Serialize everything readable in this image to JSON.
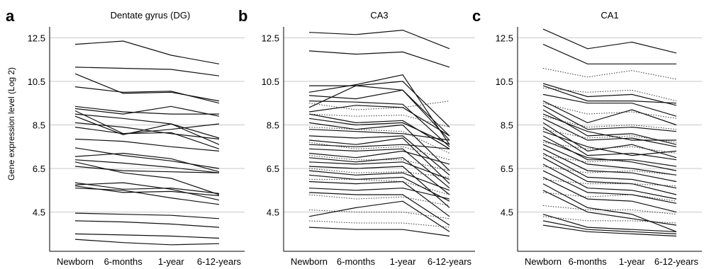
{
  "chart_data": {
    "ylabel": "Gene expression level (Log 2)",
    "categories": [
      "Newborn",
      "6-months",
      "1-year",
      "6-12-years"
    ],
    "yticks": [
      "12.5",
      "10.5",
      "8.5",
      "6.5",
      "4.5"
    ],
    "ylim": [
      2.7,
      13.0
    ],
    "grid": true,
    "panels": [
      {
        "letter": "a",
        "title": "Dentate gyrus (DG)",
        "type": "line",
        "series": [
          {
            "values": [
              12.2,
              12.35,
              11.7,
              11.3
            ]
          },
          {
            "values": [
              11.15,
              11.1,
              11.05,
              10.75
            ]
          },
          {
            "values": [
              10.85,
              9.95,
              10.0,
              9.6
            ]
          },
          {
            "values": [
              10.25,
              10.0,
              10.05,
              9.5
            ]
          },
          {
            "values": [
              9.35,
              9.1,
              9.0,
              9.0
            ]
          },
          {
            "values": [
              9.25,
              9.0,
              9.35,
              8.9
            ]
          },
          {
            "values": [
              9.15,
              8.1,
              8.3,
              8.55
            ]
          },
          {
            "values": [
              9.0,
              8.8,
              8.55,
              7.9
            ]
          },
          {
            "values": [
              8.9,
              8.05,
              8.55,
              7.6
            ]
          },
          {
            "values": [
              8.6,
              8.4,
              8.1,
              7.85
            ]
          },
          {
            "values": [
              8.4,
              8.1,
              8.15,
              7.4
            ]
          },
          {
            "values": [
              7.85,
              7.75,
              7.5,
              7.3
            ]
          },
          {
            "values": [
              7.45,
              7.1,
              6.85,
              6.5
            ]
          },
          {
            "values": [
              7.05,
              7.2,
              6.95,
              6.35
            ]
          },
          {
            "values": [
              6.9,
              6.75,
              6.55,
              6.3
            ]
          },
          {
            "values": [
              6.8,
              6.3,
              6.05,
              5.3
            ]
          },
          {
            "values": [
              6.6,
              6.4,
              6.35,
              6.3
            ]
          },
          {
            "values": [
              5.85,
              5.55,
              5.6,
              5.35
            ]
          },
          {
            "values": [
              5.75,
              5.85,
              5.55,
              5.05
            ]
          },
          {
            "values": [
              5.7,
              5.4,
              5.45,
              5.25
            ]
          },
          {
            "values": [
              5.6,
              5.5,
              5.15,
              4.85
            ]
          },
          {
            "values": [
              4.45,
              4.4,
              4.35,
              4.2
            ]
          },
          {
            "values": [
              4.1,
              4.05,
              3.95,
              3.8
            ]
          },
          {
            "values": [
              3.5,
              3.45,
              3.4,
              3.3
            ]
          },
          {
            "values": [
              3.25,
              3.1,
              3.0,
              3.05
            ]
          }
        ]
      },
      {
        "letter": "b",
        "title": "CA3",
        "type": "line",
        "series": [
          {
            "values": [
              12.75,
              12.65,
              12.85,
              12.0
            ]
          },
          {
            "values": [
              11.9,
              11.75,
              11.85,
              11.15
            ]
          },
          {
            "values": [
              10.3,
              10.3,
              10.5,
              8.4
            ]
          },
          {
            "values": [
              10.0,
              10.35,
              10.8,
              7.6
            ]
          },
          {
            "values": [
              9.85,
              9.7,
              10.1,
              8.0
            ]
          },
          {
            "values": [
              9.6,
              9.55,
              9.45,
              7.5
            ]
          },
          {
            "values": [
              9.3,
              10.3,
              10.1,
              7.8
            ]
          },
          {
            "values": [
              9.1,
              9.4,
              9.3,
              8.0
            ]
          },
          {
            "values": [
              9.0,
              8.6,
              8.7,
              7.4
            ]
          },
          {
            "values": [
              8.8,
              8.5,
              8.6,
              7.6
            ]
          },
          {
            "values": [
              8.6,
              8.3,
              8.5,
              6.4
            ]
          },
          {
            "values": [
              8.3,
              8.2,
              8.1,
              7.8
            ]
          },
          {
            "values": [
              8.0,
              7.9,
              8.0,
              6.2
            ]
          },
          {
            "values": [
              7.8,
              7.6,
              7.9,
              5.8
            ]
          },
          {
            "values": [
              7.6,
              7.5,
              7.6,
              7.4
            ]
          },
          {
            "values": [
              7.4,
              7.3,
              7.4,
              5.6
            ]
          },
          {
            "values": [
              7.2,
              7.0,
              7.3,
              6.7
            ]
          },
          {
            "values": [
              7.0,
              6.8,
              7.0,
              5.3
            ]
          },
          {
            "values": [
              6.8,
              6.7,
              6.8,
              6.0
            ]
          },
          {
            "values": [
              6.6,
              6.5,
              6.6,
              4.7
            ]
          },
          {
            "values": [
              6.4,
              6.2,
              6.3,
              5.5
            ]
          },
          {
            "values": [
              6.2,
              6.0,
              6.1,
              5.0
            ]
          },
          {
            "values": [
              5.9,
              5.8,
              5.9,
              4.3
            ]
          },
          {
            "values": [
              5.6,
              5.5,
              5.6,
              5.1
            ]
          },
          {
            "values": [
              5.4,
              5.3,
              5.3,
              3.9
            ]
          },
          {
            "values": [
              4.3,
              4.7,
              5.0,
              3.6
            ]
          },
          {
            "values": [
              3.8,
              3.7,
              3.7,
              3.4
            ]
          },
          {
            "values": [
              9.5,
              9.2,
              9.3,
              9.6
            ],
            "style": "dotted"
          },
          {
            "values": [
              9.0,
              8.9,
              8.95,
              8.4
            ],
            "style": "dotted"
          },
          {
            "values": [
              8.4,
              8.3,
              8.2,
              7.2
            ],
            "style": "dotted"
          },
          {
            "values": [
              7.7,
              7.4,
              7.5,
              6.9
            ],
            "style": "dotted"
          },
          {
            "values": [
              7.1,
              6.9,
              6.9,
              6.4
            ],
            "style": "dotted"
          },
          {
            "values": [
              6.5,
              6.3,
              6.35,
              6.1
            ],
            "style": "dotted"
          },
          {
            "values": [
              6.0,
              6.0,
              5.9,
              5.3
            ],
            "style": "dotted"
          },
          {
            "values": [
              5.3,
              5.1,
              5.2,
              4.8
            ],
            "style": "dotted"
          },
          {
            "values": [
              4.6,
              4.5,
              4.5,
              4.2
            ],
            "style": "dotted"
          },
          {
            "values": [
              4.1,
              4.0,
              4.0,
              3.8
            ],
            "style": "dotted"
          }
        ]
      },
      {
        "letter": "c",
        "title": "CA1",
        "type": "line",
        "series": [
          {
            "values": [
              12.9,
              12.0,
              12.3,
              11.8
            ]
          },
          {
            "values": [
              12.2,
              11.3,
              11.3,
              11.3
            ]
          },
          {
            "values": [
              10.4,
              9.8,
              9.9,
              9.4
            ]
          },
          {
            "values": [
              10.3,
              9.6,
              9.6,
              9.5
            ]
          },
          {
            "values": [
              9.9,
              9.5,
              9.5,
              8.9
            ]
          },
          {
            "values": [
              9.6,
              8.6,
              9.2,
              8.5
            ]
          },
          {
            "values": [
              9.4,
              8.3,
              8.4,
              8.2
            ]
          },
          {
            "values": [
              9.2,
              8.0,
              8.1,
              7.6
            ]
          },
          {
            "values": [
              9.0,
              8.2,
              7.8,
              7.8
            ]
          },
          {
            "values": [
              8.8,
              7.8,
              7.9,
              7.5
            ]
          },
          {
            "values": [
              8.6,
              7.3,
              7.6,
              7.0
            ]
          },
          {
            "values": [
              8.4,
              7.1,
              7.2,
              6.9
            ]
          },
          {
            "values": [
              8.2,
              7.5,
              7.1,
              7.3
            ]
          },
          {
            "values": [
              8.0,
              6.9,
              6.9,
              6.6
            ]
          },
          {
            "values": [
              7.8,
              7.0,
              6.8,
              6.4
            ]
          },
          {
            "values": [
              7.6,
              6.7,
              6.5,
              6.2
            ]
          },
          {
            "values": [
              7.4,
              6.4,
              6.3,
              5.9
            ]
          },
          {
            "values": [
              7.2,
              6.1,
              6.0,
              5.6
            ]
          },
          {
            "values": [
              7.0,
              5.9,
              5.8,
              5.3
            ]
          },
          {
            "values": [
              6.7,
              5.6,
              5.5,
              5.1
            ]
          },
          {
            "values": [
              6.4,
              5.4,
              5.3,
              4.9
            ]
          },
          {
            "values": [
              6.1,
              5.1,
              5.0,
              4.5
            ]
          },
          {
            "values": [
              5.8,
              4.7,
              4.4,
              3.6
            ]
          },
          {
            "values": [
              5.5,
              4.5,
              4.2,
              3.9
            ]
          },
          {
            "values": [
              4.4,
              3.8,
              3.7,
              3.6
            ]
          },
          {
            "values": [
              4.1,
              3.7,
              3.6,
              3.5
            ]
          },
          {
            "values": [
              3.9,
              3.6,
              3.5,
              3.4
            ]
          },
          {
            "values": [
              11.1,
              10.7,
              11.0,
              10.6
            ],
            "style": "dotted"
          },
          {
            "values": [
              10.2,
              10.0,
              10.1,
              9.6
            ],
            "style": "dotted"
          },
          {
            "values": [
              9.5,
              9.0,
              9.1,
              8.8
            ],
            "style": "dotted"
          },
          {
            "values": [
              8.9,
              8.4,
              8.5,
              8.3
            ],
            "style": "dotted"
          },
          {
            "values": [
              8.3,
              7.9,
              8.0,
              7.7
            ],
            "style": "dotted"
          },
          {
            "values": [
              7.7,
              7.4,
              7.5,
              7.2
            ],
            "style": "dotted"
          },
          {
            "values": [
              7.1,
              6.8,
              6.9,
              6.6
            ],
            "style": "dotted"
          },
          {
            "values": [
              6.6,
              6.3,
              6.4,
              6.2
            ],
            "style": "dotted"
          },
          {
            "values": [
              6.0,
              5.8,
              5.8,
              5.7
            ],
            "style": "dotted"
          },
          {
            "values": [
              5.4,
              5.2,
              5.3,
              5.0
            ],
            "style": "dotted"
          },
          {
            "values": [
              4.8,
              4.6,
              4.6,
              4.4
            ],
            "style": "dotted"
          },
          {
            "values": [
              4.3,
              4.1,
              4.1,
              4.0
            ],
            "style": "dotted"
          }
        ]
      }
    ]
  }
}
